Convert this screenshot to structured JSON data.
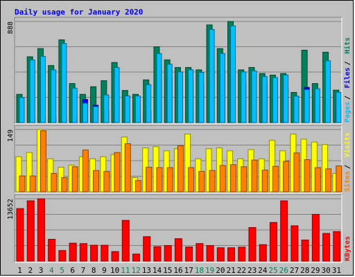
{
  "chart_data": {
    "type": "bar",
    "title": "Daily usage for January 2020",
    "categories": [
      "1",
      "2",
      "3",
      "4",
      "5",
      "6",
      "7",
      "8",
      "9",
      "10",
      "11",
      "12",
      "13",
      "14",
      "15",
      "16",
      "17",
      "18",
      "19",
      "20",
      "21",
      "22",
      "23",
      "24",
      "25",
      "26",
      "27",
      "28",
      "29",
      "30",
      "31"
    ],
    "weekend_days": [
      "4",
      "5",
      "11",
      "12",
      "18",
      "19",
      "25",
      "26"
    ],
    "panels": [
      {
        "id": "hits-files-pages",
        "ymax_label": "888",
        "ymax": 888,
        "grid": true,
        "legend": [
          "Pages",
          "Files",
          "Hits"
        ],
        "series": [
          {
            "name": "Hits",
            "color": "#00805c",
            "values": [
              248,
              578,
              650,
              501,
              727,
              343,
              248,
              315,
              368,
              528,
              282,
              248,
              375,
              666,
              551,
              484,
              484,
              463,
              858,
              650,
              888,
              463,
              484,
              431,
              417,
              431,
              265,
              636,
              343,
              618,
              285
            ]
          },
          {
            "name": "Files",
            "color": "#0000ff",
            "values": [
              25,
              34,
              38,
              34,
              38,
              25,
              203,
              152,
              100,
              140,
              25,
              50,
              100,
              497,
              400,
              400,
              375,
              350,
              485,
              460,
              620,
              348,
              433,
              350,
              375,
              300,
              200,
              309,
              200,
              250,
              150
            ]
          },
          {
            "name": "Pages",
            "color": "#00c0ff",
            "values": [
              220,
              550,
              581,
              462,
              694,
              302,
              170,
              140,
              243,
              483,
              234,
              234,
              333,
              606,
              512,
              445,
              464,
              441,
              818,
              606,
              849,
              445,
              454,
              405,
              395,
              418,
              232,
              290,
              297,
              543,
              265
            ]
          }
        ]
      },
      {
        "id": "visits-sites",
        "ymax_label": "149",
        "ymax": 149,
        "grid": true,
        "legend": [
          "Sites",
          "Visits"
        ],
        "series": [
          {
            "name": "Visits",
            "color": "#ffff00",
            "values": [
              84,
              94,
              149,
              79,
              59,
              64,
              84,
              79,
              84,
              89,
              131,
              34,
              105,
              108,
              98,
              103,
              138,
              79,
              103,
              105,
              98,
              79,
              101,
              79,
              123,
              98,
              138,
              126,
              119,
              113,
              44
            ]
          },
          {
            "name": "Sites",
            "color": "#ff8000",
            "values": [
              38,
              38,
              146,
              44,
              34,
              60,
              100,
              51,
              49,
              94,
              115,
              27,
              59,
              58,
              58,
              110,
              58,
              49,
              51,
              63,
              65,
              60,
              76,
              52,
              61,
              73,
              93,
              77,
              58,
              55,
              62
            ]
          }
        ]
      },
      {
        "id": "kbytes",
        "ymax_label": "13652",
        "ymax": 13652,
        "grid": true,
        "legend": [
          "KBytes"
        ],
        "series": [
          {
            "name": "KBytes",
            "color": "#ff0000",
            "values": [
              11500,
              13200,
              13652,
              4770,
              2310,
              3920,
              3830,
              3470,
              3470,
              2080,
              8920,
              1540,
              5350,
              3170,
              3400,
              4910,
              3090,
              3840,
              3400,
              2920,
              2920,
              3060,
              7350,
              3600,
              8460,
              13200,
              7730,
              4610,
              10240,
              6060,
              6450
            ]
          }
        ]
      }
    ]
  },
  "colors": {
    "background": "#c0c0c0",
    "plot_background": "#c0c0c0",
    "title": "#0000ff",
    "grid": "#808080",
    "weekend_tick": "#00805c",
    "weekday_tick": "#000000"
  }
}
